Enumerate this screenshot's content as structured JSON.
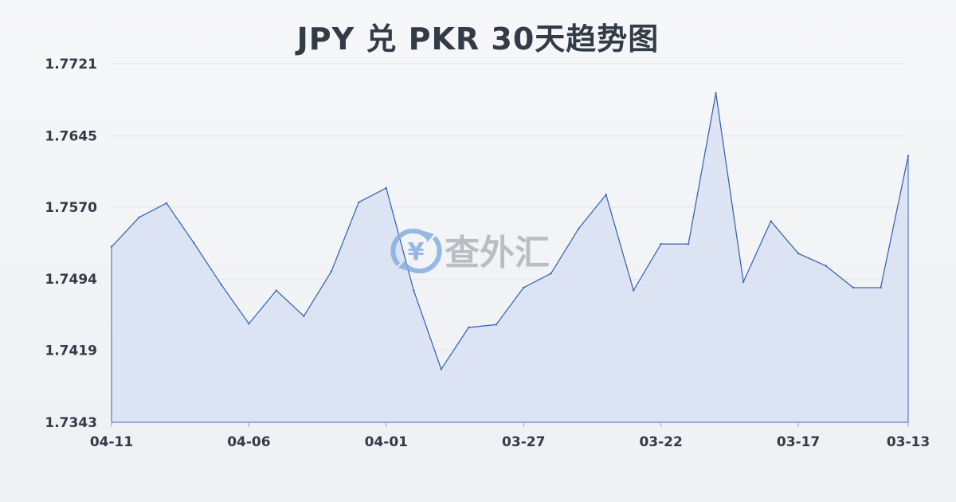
{
  "chart_data": {
    "type": "area",
    "title": "JPY 兑 PKR 30天趋势图",
    "xlabel": "",
    "ylabel": "",
    "ylim": [
      1.7343,
      1.7721
    ],
    "y_ticks": [
      "1.7721",
      "1.7645",
      "1.7570",
      "1.7494",
      "1.7419",
      "1.7343"
    ],
    "x_ticks": [
      "04-11",
      "04-06",
      "04-01",
      "03-27",
      "03-22",
      "03-17",
      "03-13"
    ],
    "grid": true,
    "x": [
      "04-11",
      "04-10",
      "04-09",
      "04-08",
      "04-07",
      "04-06",
      "04-05",
      "04-04",
      "04-03",
      "04-02",
      "04-01",
      "03-31",
      "03-30",
      "03-29",
      "03-28",
      "03-27",
      "03-26",
      "03-25",
      "03-24",
      "03-23",
      "03-22",
      "03-21",
      "03-20",
      "03-19",
      "03-18",
      "03-17",
      "03-16",
      "03-15",
      "03-14",
      "03-13"
    ],
    "series": [
      {
        "values": [
          1.7528,
          1.7559,
          1.7574,
          1.7532,
          1.7488,
          1.7447,
          1.7482,
          1.7455,
          1.7502,
          1.7575,
          1.759,
          1.7482,
          1.7399,
          1.7443,
          1.7446,
          1.7485,
          1.75,
          1.7547,
          1.7583,
          1.7482,
          1.7531,
          1.7531,
          1.769,
          1.7491,
          1.7555,
          1.7521,
          1.7508,
          1.7485,
          1.7485,
          1.7624
        ]
      }
    ]
  },
  "colors": {
    "line": "#3a66b8",
    "fill": "#d8e0f3"
  },
  "watermark": {
    "text": "查外汇",
    "icon": "yen-exchange-icon",
    "symbol": "¥"
  }
}
